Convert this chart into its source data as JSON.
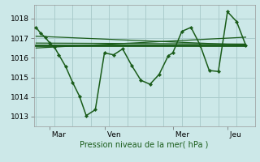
{
  "bg_color": "#cce8e8",
  "grid_color": "#aacccc",
  "line_color": "#1a5c1a",
  "marker_color": "#1a5c1a",
  "xlabel": "Pression niveau de la mer( hPa )",
  "ylim": [
    1012.5,
    1018.7
  ],
  "yticks": [
    1013,
    1014,
    1015,
    1016,
    1017,
    1018
  ],
  "day_labels": [
    " Mar",
    " Ven",
    " Mer",
    " Jeu"
  ],
  "day_positions": [
    6,
    30,
    60,
    84
  ],
  "xlim": [
    -1,
    96
  ],
  "main_series_x": [
    0,
    2,
    4,
    6,
    8,
    10,
    13,
    16,
    19,
    22,
    26,
    30,
    34,
    38,
    42,
    46,
    50,
    54,
    58,
    60,
    64,
    68,
    72,
    76,
    80,
    84,
    88,
    92
  ],
  "main_series_y": [
    1017.55,
    1017.25,
    1017.05,
    1016.75,
    1016.55,
    1016.15,
    1015.55,
    1014.75,
    1014.05,
    1013.05,
    1013.35,
    1016.25,
    1016.15,
    1016.45,
    1015.6,
    1014.85,
    1014.65,
    1015.15,
    1016.1,
    1016.25,
    1017.35,
    1017.55,
    1016.65,
    1015.35,
    1015.3,
    1018.35,
    1017.85,
    1016.65
  ],
  "trend_lines": [
    {
      "x": [
        0,
        92
      ],
      "y": [
        1017.1,
        1016.65
      ],
      "lw": 0.9
    },
    {
      "x": [
        0,
        92
      ],
      "y": [
        1016.75,
        1016.7
      ],
      "lw": 0.9
    },
    {
      "x": [
        0,
        60
      ],
      "y": [
        1016.62,
        1016.62
      ],
      "lw": 0.9
    },
    {
      "x": [
        0,
        92
      ],
      "y": [
        1016.5,
        1017.05
      ],
      "lw": 0.9
    }
  ],
  "flat_line_x": [
    0,
    92
  ],
  "flat_line_y": [
    1016.62,
    1016.62
  ],
  "flat_line_lw": 2.0
}
